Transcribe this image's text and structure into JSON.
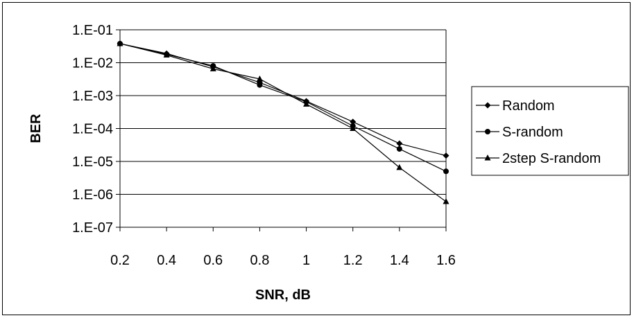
{
  "chart_data": {
    "type": "line",
    "xlabel": "SNR, dB",
    "ylabel": "BER",
    "y_scale": "log",
    "xlim": [
      0.2,
      1.6
    ],
    "ylim": [
      1e-07,
      0.1
    ],
    "x": [
      0.2,
      0.4,
      0.6,
      0.8,
      1.0,
      1.2,
      1.4,
      1.6
    ],
    "x_tick_labels": [
      "0.2",
      "0.4",
      "0.6",
      "0.8",
      "1",
      "1.2",
      "1.4",
      "1.6"
    ],
    "y_ticks": [
      1e-07,
      1e-06,
      1e-05,
      0.0001,
      0.001,
      0.01,
      0.1
    ],
    "y_tick_labels": [
      "1.E-07",
      "1.E-06",
      "1.E-05",
      "1.E-04",
      "1.E-03",
      "1.E-02",
      "1.E-01"
    ],
    "grid": "horizontal",
    "legend_position": "right",
    "series": [
      {
        "name": "Random",
        "marker": "diamond",
        "values": [
          0.038,
          0.019,
          0.0075,
          0.0025,
          0.00068,
          0.00016,
          3.5e-05,
          1.5e-05
        ]
      },
      {
        "name": "S-random",
        "marker": "circle",
        "values": [
          0.038,
          0.018,
          0.008,
          0.0021,
          0.00065,
          0.00012,
          2.4e-05,
          5e-06
        ]
      },
      {
        "name": "2step S-random",
        "marker": "triangle",
        "values": [
          0.038,
          0.017,
          0.0065,
          0.0032,
          0.00055,
          0.0001,
          6.5e-06,
          6e-07
        ]
      }
    ],
    "colors": {
      "line": "#000000",
      "grid": "#000000",
      "background": "#ffffff"
    }
  }
}
